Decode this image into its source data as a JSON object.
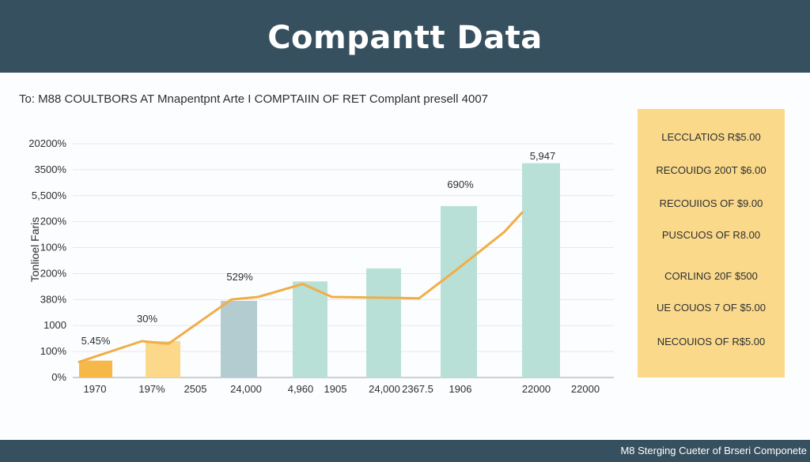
{
  "header": {
    "title": "Compantt Data"
  },
  "subtitle": "To: M88 COULTBORS AT Mnapentpnt Arte I COMPTAIIN OF RET Complant presell 4007",
  "footer": {
    "text": "M8 Sterging Cueter of Brseri Componete"
  },
  "legend": {
    "items": [
      "LECCLATIOS R$5.00",
      "RECOUIDG 200T $6.00",
      "RECOUIIOS OF $9.00",
      "PUSCUOS OF R8.00",
      "CORLING 20F $500",
      "UE COUOS 7 OF $5.00",
      "NECOUIOS OF R$5.00"
    ]
  },
  "colors": {
    "header": "#37505f",
    "line": "#f0ae48",
    "bar_orange": "#f7b84a",
    "bar_yellow": "#fcd88a",
    "bar_blue": "#b3ccd0",
    "bar_mint": "#b9e0d7",
    "legend_bg": "#fbd98a"
  },
  "chart_data": {
    "type": "bar",
    "ylabel": "Tonlioel Faris",
    "y_tick_labels": [
      "0%",
      "100%",
      "1000",
      "380%",
      "200%",
      "100%",
      "200%",
      "5,500%",
      "3500%",
      "20200%"
    ],
    "x_tick_labels": [
      "1970",
      "197%",
      "2505",
      "24,000",
      "4,960",
      "1905",
      "24,000",
      "2367.5",
      "1906",
      "22000",
      "22000"
    ],
    "ylim": [
      0,
      9
    ],
    "grid": true,
    "bars": [
      {
        "value": 0.65,
        "label": "5.45%",
        "color": "#f7b84a"
      },
      {
        "value": 1.4,
        "label": "30%",
        "color": "#fcd88a"
      },
      {
        "value": 2.95,
        "label": "",
        "color": "#b3ccd0"
      },
      {
        "value": 3.7,
        "label": "529%",
        "color": "#b9e0d7"
      },
      {
        "value": 4.2,
        "label": "",
        "color": "#b9e0d7"
      },
      {
        "value": 6.6,
        "label": "690%",
        "color": "#b9e0d7"
      },
      {
        "value": 8.25,
        "label": "5,947",
        "color": "#b9e0d7"
      }
    ],
    "line": {
      "x": [
        0,
        1.4,
        2.0,
        3.4,
        4.0,
        5.0,
        5.65,
        7.6,
        8.4,
        9.5,
        9.9
      ],
      "y": [
        0.6,
        1.4,
        1.3,
        3.0,
        3.1,
        3.6,
        3.1,
        3.05,
        4.1,
        5.6,
        6.35
      ]
    }
  }
}
